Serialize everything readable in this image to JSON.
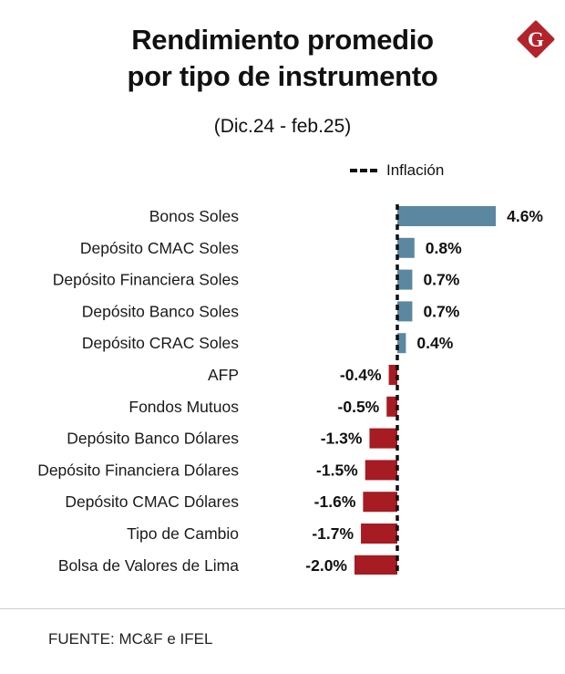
{
  "header": {
    "title_line1": "Rendimiento promedio",
    "title_line2": "por tipo de instrumento",
    "subtitle": "(Dic.24 - feb.25)",
    "logo_letter": "G"
  },
  "legend": {
    "label": "Inflación"
  },
  "footer": {
    "source": "FUENTE: MC&F e IFEL"
  },
  "colors": {
    "positive": "#5b88a0",
    "negative": "#a71b22",
    "logo": "#b3232c",
    "reference_line": "#111111"
  },
  "chart_data": {
    "type": "bar",
    "orientation": "horizontal",
    "categories": [
      "Bonos Soles",
      "Depósito CMAC Soles",
      "Depósito Financiera Soles",
      "Depósito Banco Soles",
      "Depósito CRAC Soles",
      "AFP",
      "Fondos Mutuos",
      "Depósito Banco Dólares",
      "Depósito Financiera Dólares",
      "Depósito CMAC Dólares",
      "Tipo de Cambio",
      "Bolsa de Valores de Lima"
    ],
    "values": [
      4.6,
      0.8,
      0.7,
      0.7,
      0.4,
      -0.4,
      -0.5,
      -1.3,
      -1.5,
      -1.6,
      -1.7,
      -2.0
    ],
    "data_labels": [
      "4.6%",
      "0.8%",
      "0.7%",
      "0.7%",
      "0.4%",
      "-0.4%",
      "-0.5%",
      "-1.3%",
      "-1.5%",
      "-1.6%",
      "-1.7%",
      "-2.0%"
    ],
    "reference_line": {
      "value": 0,
      "label": "Inflación",
      "style": "dashed"
    },
    "axes_visible": false,
    "grid": false,
    "legend_position": "top"
  }
}
